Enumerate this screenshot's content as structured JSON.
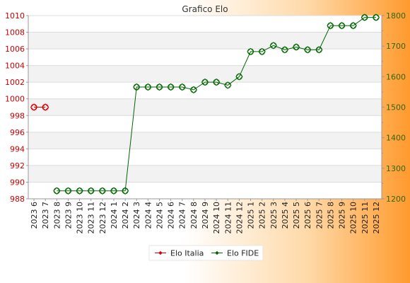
{
  "chart_data": {
    "type": "line",
    "title": "Grafico Elo",
    "categories": [
      "2023 6",
      "2023 7",
      "2023 8",
      "2023 9",
      "2023 10",
      "2023 11",
      "2023 12",
      "2024 1",
      "2024 2",
      "2024 3",
      "2024 4",
      "2024 5",
      "2024 6",
      "2024 7",
      "2024 8",
      "2024 9",
      "2024 10",
      "2024 11",
      "2024 12",
      "2025 1",
      "2025 2",
      "2025 3",
      "2025 4",
      "2025 5",
      "2025 6",
      "2025 7",
      "2025 8",
      "2025 9",
      "2025 10",
      "2025 11",
      "2025 12"
    ],
    "y_left": {
      "min": 988,
      "max": 1010,
      "ticks": [
        988,
        990,
        992,
        994,
        996,
        998,
        1000,
        1002,
        1004,
        1006,
        1008,
        1010
      ],
      "color": "#cc0000"
    },
    "y_right": {
      "min": 1200,
      "max": 1800,
      "ticks": [
        1200,
        1300,
        1400,
        1500,
        1600,
        1700,
        1800
      ],
      "color": "#336600"
    },
    "grid": true,
    "legend_position": "bottom",
    "series": [
      {
        "name": "Elo Italia",
        "axis": "left",
        "color": "#dd0000",
        "values": [
          999,
          999,
          null,
          null,
          null,
          null,
          null,
          null,
          null,
          null,
          null,
          null,
          null,
          null,
          null,
          null,
          null,
          null,
          null,
          null,
          null,
          null,
          null,
          null,
          null,
          null,
          null,
          null,
          null,
          null,
          null
        ]
      },
      {
        "name": "Elo FIDE",
        "axis": "right",
        "color": "#006600",
        "values": [
          null,
          null,
          1226,
          1226,
          1226,
          1226,
          1226,
          1226,
          1226,
          1566,
          1566,
          1566,
          1566,
          1566,
          1557,
          1582,
          1582,
          1572,
          1600,
          1682,
          1682,
          1702,
          1688,
          1697,
          1688,
          1688,
          1767,
          1767,
          1767,
          1794,
          1794
        ]
      }
    ]
  }
}
